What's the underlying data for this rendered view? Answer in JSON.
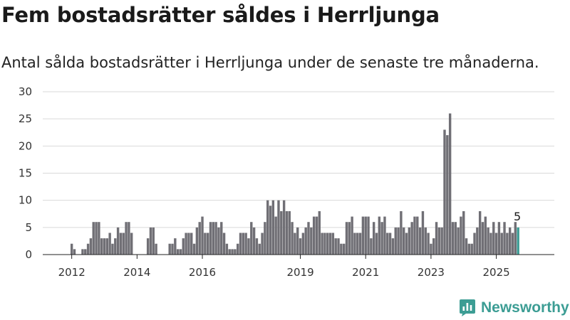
{
  "header": {
    "title": "Fem bostadsrätter såldes i Herrljunga",
    "subtitle": "Antal sålda bostadsrätter i Herrljunga under de senaste tre månaderna."
  },
  "brand": {
    "name": "Newsworthy",
    "icon": "newsworthy-logo-icon",
    "color": "#3c9d94"
  },
  "chart_data": {
    "type": "bar",
    "title": "Fem bostadsrätter såldes i Herrljunga",
    "subtitle": "Antal sålda bostadsrätter i Herrljunga under de senaste tre månaderna.",
    "xlabel": "",
    "ylabel": "",
    "ylim": [
      0,
      30
    ],
    "y_ticks": [
      0,
      5,
      10,
      15,
      20,
      25,
      30
    ],
    "x_ticks": [
      {
        "label": "2012",
        "index": 3
      },
      {
        "label": "2014",
        "index": 27
      },
      {
        "label": "2016",
        "index": 51
      },
      {
        "label": "2019",
        "index": 87
      },
      {
        "label": "2021",
        "index": 111
      },
      {
        "label": "2023",
        "index": 135
      },
      {
        "label": "2025",
        "index": 159
      }
    ],
    "x_start": "2011-10",
    "x_end": "2025-09",
    "bar_color": "#706f75",
    "highlight_color": "#3a9a92",
    "grid": true,
    "legend": "none",
    "highlight": {
      "index": 167,
      "value": 5,
      "label": "5"
    },
    "values": [
      0,
      0,
      0,
      2,
      1,
      0,
      0,
      1,
      1,
      2,
      3,
      6,
      6,
      6,
      3,
      3,
      3,
      4,
      2,
      3,
      5,
      4,
      4,
      6,
      6,
      4,
      0,
      0,
      0,
      0,
      0,
      3,
      5,
      5,
      2,
      0,
      0,
      0,
      0,
      2,
      2,
      3,
      1,
      1,
      3,
      4,
      4,
      4,
      2,
      5,
      6,
      7,
      4,
      4,
      6,
      6,
      6,
      5,
      6,
      4,
      2,
      1,
      1,
      1,
      2,
      4,
      4,
      4,
      3,
      6,
      5,
      3,
      2,
      4,
      6,
      10,
      9,
      10,
      7,
      10,
      8,
      10,
      8,
      8,
      6,
      4,
      5,
      3,
      4,
      5,
      6,
      5,
      7,
      7,
      8,
      4,
      4,
      4,
      4,
      4,
      3,
      3,
      2,
      2,
      6,
      6,
      7,
      4,
      4,
      4,
      7,
      7,
      7,
      3,
      6,
      4,
      7,
      6,
      7,
      4,
      4,
      3,
      5,
      5,
      8,
      5,
      4,
      5,
      6,
      7,
      7,
      5,
      8,
      5,
      4,
      2,
      3,
      6,
      5,
      5,
      23,
      22,
      26,
      6,
      6,
      5,
      7,
      8,
      3,
      2,
      2,
      4,
      5,
      8,
      6,
      7,
      5,
      4,
      6,
      4,
      6,
      4,
      6,
      4,
      5,
      4,
      6,
      5
    ]
  }
}
